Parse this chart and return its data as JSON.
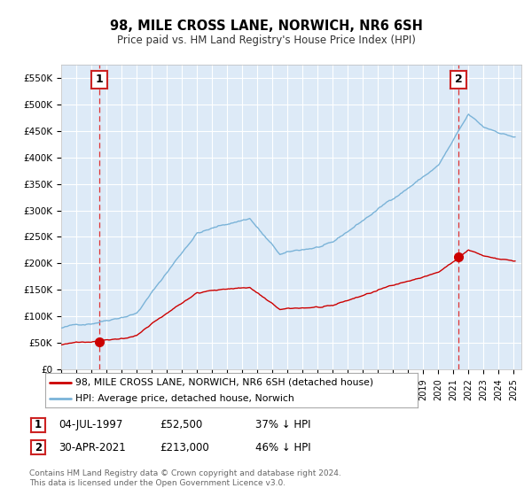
{
  "title": "98, MILE CROSS LANE, NORWICH, NR6 6SH",
  "subtitle": "Price paid vs. HM Land Registry's House Price Index (HPI)",
  "legend_line1": "98, MILE CROSS LANE, NORWICH, NR6 6SH (detached house)",
  "legend_line2": "HPI: Average price, detached house, Norwich",
  "annotation1_date": "04-JUL-1997",
  "annotation1_price": "£52,500",
  "annotation1_hpi": "37% ↓ HPI",
  "annotation2_date": "30-APR-2021",
  "annotation2_price": "£213,000",
  "annotation2_hpi": "46% ↓ HPI",
  "footer": "Contains HM Land Registry data © Crown copyright and database right 2024.\nThis data is licensed under the Open Government Licence v3.0.",
  "red_color": "#cc0000",
  "blue_color": "#7ab3d8",
  "bg_color": "#ddeaf7",
  "grid_color": "#ffffff",
  "dashed_color": "#dd3333",
  "ylim": [
    0,
    575000
  ],
  "yticks": [
    0,
    50000,
    100000,
    150000,
    200000,
    250000,
    300000,
    350000,
    400000,
    450000,
    500000,
    550000
  ],
  "ytick_labels": [
    "£0",
    "£50K",
    "£100K",
    "£150K",
    "£200K",
    "£250K",
    "£300K",
    "£350K",
    "£400K",
    "£450K",
    "£500K",
    "£550K"
  ],
  "sale1_x": 1997.5,
  "sale1_y": 52500,
  "sale2_x": 2021.33,
  "sale2_y": 213000,
  "xlim_min": 1995.0,
  "xlim_max": 2025.5
}
